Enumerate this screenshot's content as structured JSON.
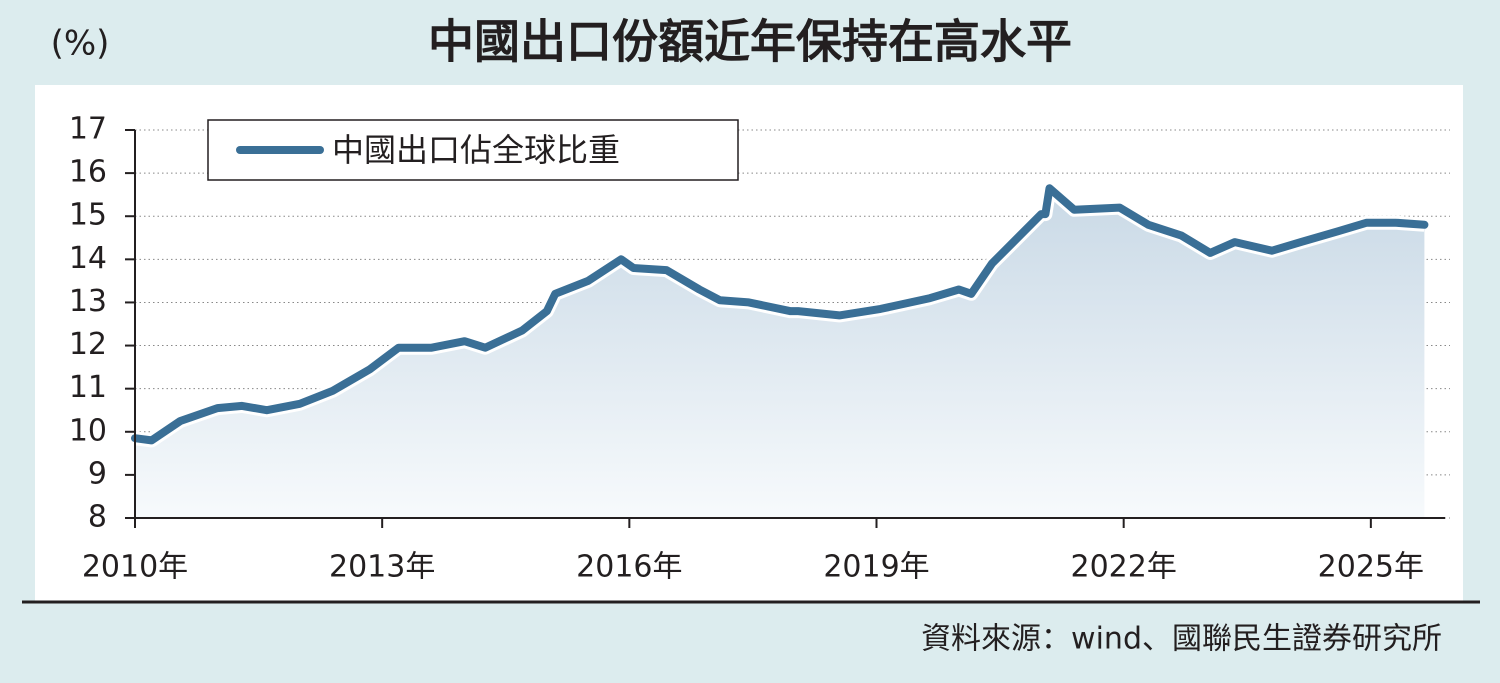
{
  "chart_data": {
    "type": "line",
    "title": "中國出口份額近年保持在高水平",
    "unit_label": "(%)",
    "source": "資料來源：wind、國聯民生證券研究所",
    "x": [
      2010.0,
      2010.2,
      2010.55,
      2011.0,
      2011.3,
      2011.6,
      2012.0,
      2012.4,
      2012.85,
      2013.2,
      2013.6,
      2014.0,
      2014.25,
      2014.7,
      2015.0,
      2015.1,
      2015.5,
      2015.9,
      2016.05,
      2016.45,
      2016.85,
      2017.1,
      2017.45,
      2017.95,
      2018.05,
      2018.55,
      2019.05,
      2019.65,
      2020.0,
      2020.15,
      2020.4,
      2021.0,
      2021.05,
      2021.1,
      2021.4,
      2021.95,
      2022.3,
      2022.7,
      2023.05,
      2023.35,
      2023.8,
      2024.15,
      2024.6,
      2024.95,
      2025.3,
      2025.65
    ],
    "series": [
      {
        "name": "中國出口佔全球比重",
        "color": "#3a6f96",
        "values": [
          9.85,
          9.8,
          10.25,
          10.55,
          10.6,
          10.5,
          10.65,
          10.95,
          11.45,
          11.95,
          11.95,
          12.1,
          11.95,
          12.35,
          12.8,
          13.2,
          13.5,
          14.0,
          13.8,
          13.75,
          13.3,
          13.05,
          13.0,
          12.8,
          12.8,
          12.7,
          12.85,
          13.1,
          13.3,
          13.2,
          13.9,
          15.05,
          15.05,
          15.65,
          15.15,
          15.2,
          14.8,
          14.55,
          14.15,
          14.4,
          14.2,
          14.4,
          14.65,
          14.85,
          14.85,
          14.8
        ]
      }
    ],
    "xlim": [
      2010,
      2025.9
    ],
    "xticks": [
      {
        "value": 2010,
        "label": "2010年"
      },
      {
        "value": 2013,
        "label": "2013年"
      },
      {
        "value": 2016,
        "label": "2016年"
      },
      {
        "value": 2019,
        "label": "2019年"
      },
      {
        "value": 2022,
        "label": "2022年"
      },
      {
        "value": 2025,
        "label": "2025年"
      }
    ],
    "ylim": [
      8,
      17
    ],
    "yticks": [
      8,
      9,
      10,
      11,
      12,
      13,
      14,
      15,
      16,
      17
    ],
    "grid": true
  }
}
